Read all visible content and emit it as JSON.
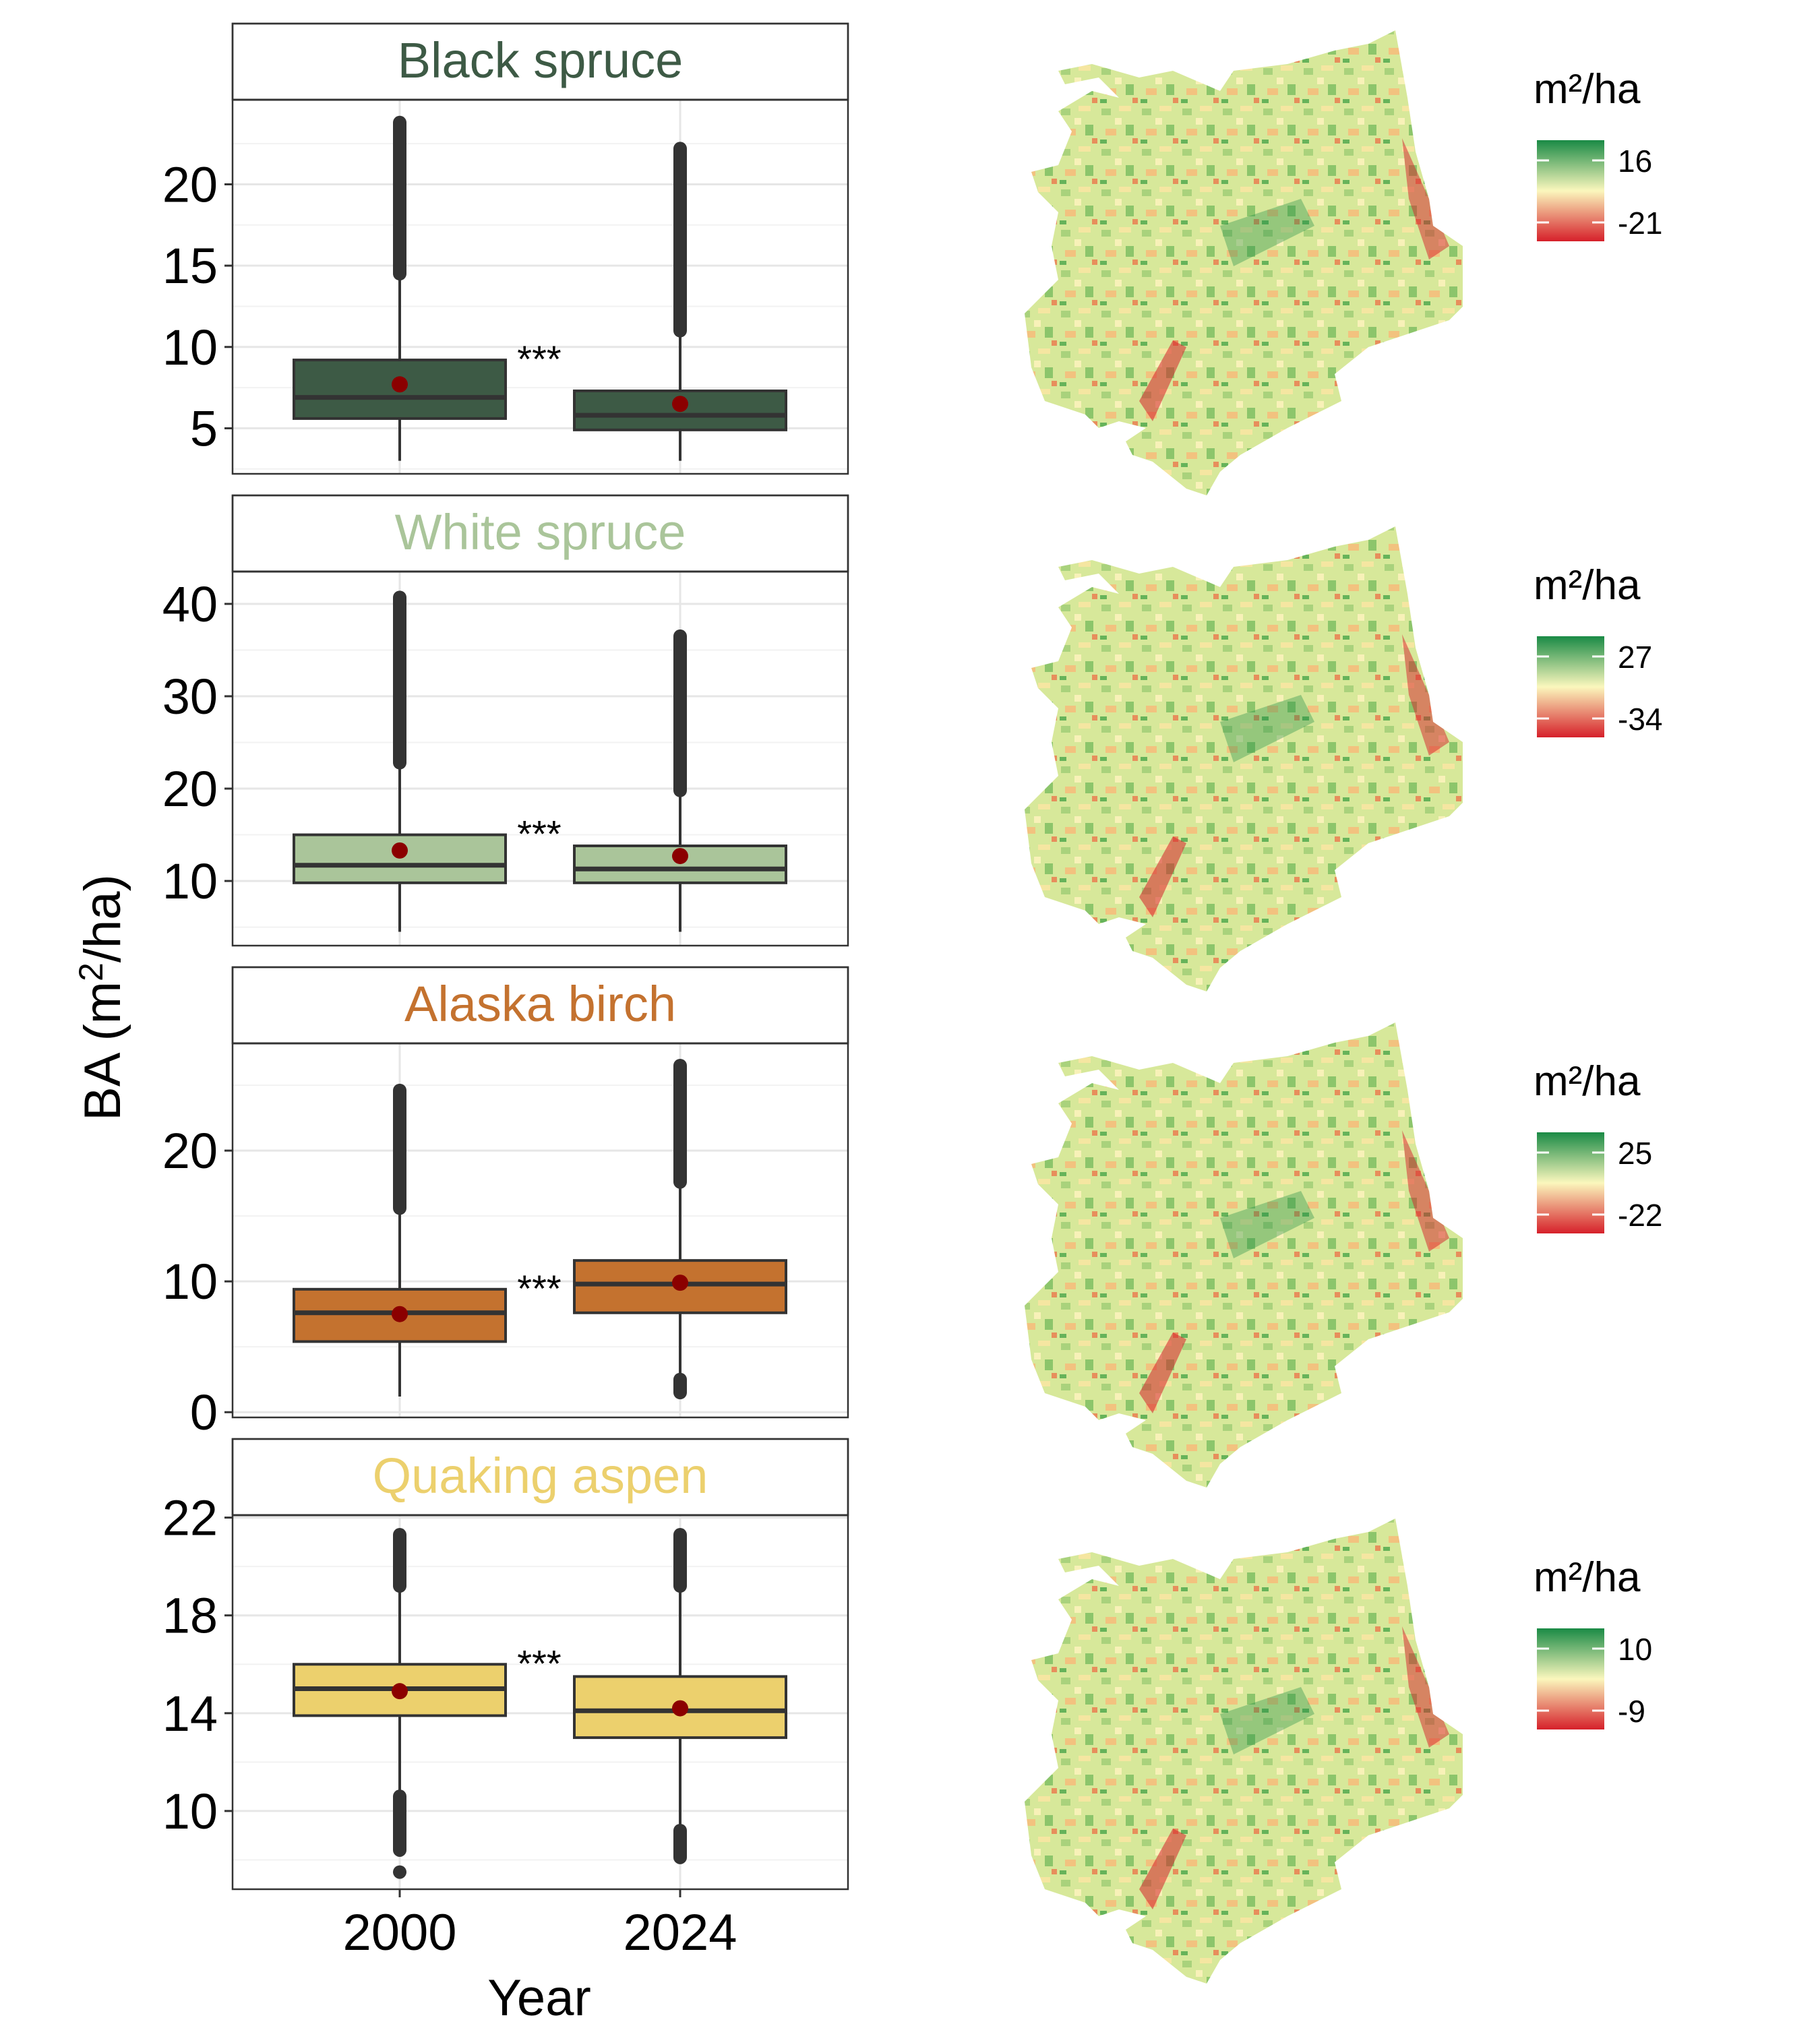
{
  "figure": {
    "ylabel": "BA (m²/ha)",
    "ylabel_main": "BA (m",
    "ylabel_sup": "2",
    "ylabel_tail": "/ha)",
    "xlabel": "Year"
  },
  "chart_data": [
    {
      "type": "box",
      "title": "Black spruce",
      "title_color": "#3d5a45",
      "fill": "#3d5a45",
      "categories": [
        "2000",
        "2024"
      ],
      "ylim": [
        2.2,
        25.2
      ],
      "yticks": [
        5,
        10,
        15,
        20
      ],
      "significance": "***",
      "boxes": [
        {
          "min": 3,
          "q1": 5.6,
          "median": 6.9,
          "q3": 9.2,
          "mean": 7.7,
          "whisker_high": 14.5,
          "outliers_low": null,
          "outliers_high": 23.8
        },
        {
          "min": 3,
          "q1": 4.9,
          "median": 5.8,
          "q3": 7.3,
          "mean": 6.5,
          "whisker_high": 11.0,
          "outliers_low": null,
          "outliers_high": 22.2
        }
      ]
    },
    {
      "type": "box",
      "title": "White spruce",
      "title_color": "#aac59a",
      "fill": "#aac59a",
      "categories": [
        "2000",
        "2024"
      ],
      "ylim": [
        3,
        43.5
      ],
      "yticks": [
        10,
        20,
        30,
        40
      ],
      "significance": "***",
      "boxes": [
        {
          "min": 4.5,
          "q1": 9.8,
          "median": 11.7,
          "q3": 15.0,
          "mean": 13.3,
          "whisker_high": 22.8,
          "outliers_low": null,
          "outliers_high": 40.7
        },
        {
          "min": 4.5,
          "q1": 9.8,
          "median": 11.3,
          "q3": 13.8,
          "mean": 12.7,
          "whisker_high": 19.8,
          "outliers_low": null,
          "outliers_high": 36.5
        }
      ]
    },
    {
      "type": "box",
      "title": "Alaska birch",
      "title_color": "#c4722f",
      "fill": "#c4722f",
      "categories": [
        "2000",
        "2024"
      ],
      "ylim": [
        -0.4,
        28.2
      ],
      "yticks": [
        0,
        10,
        20
      ],
      "significance": "***",
      "boxes": [
        {
          "min": 1.2,
          "q1": 5.4,
          "median": 7.6,
          "q3": 9.4,
          "mean": 7.5,
          "whisker_high": 15.6,
          "outliers_low": null,
          "outliers_high": 24.6
        },
        {
          "min": 2.5,
          "q1": 7.6,
          "median": 9.8,
          "q3": 11.6,
          "mean": 9.9,
          "whisker_high": 17.6,
          "outliers_low": 1.5,
          "outliers_high": 26.5
        }
      ]
    },
    {
      "type": "box",
      "title": "Quaking aspen",
      "title_color": "#ecd06d",
      "fill": "#ecd06d",
      "categories": [
        "2000",
        "2024"
      ],
      "ylim": [
        6.8,
        22.1
      ],
      "yticks": [
        10,
        14,
        18,
        22
      ],
      "significance": "***",
      "boxes": [
        {
          "min": 10.6,
          "q1": 13.9,
          "median": 15.0,
          "q3": 16.0,
          "mean": 14.9,
          "whisker_high": 19.2,
          "outliers_low": 8.4,
          "outliers_high": 21.3,
          "extreme_low": 7.5
        },
        {
          "min": 9.2,
          "q1": 13.0,
          "median": 14.1,
          "q3": 15.5,
          "mean": 14.2,
          "whisker_high": 19.2,
          "outliers_low": 8.1,
          "outliers_high": 21.3
        }
      ]
    }
  ],
  "maps": [
    {
      "legend_title": "m²/ha",
      "max_label": "16",
      "min_label": "-21"
    },
    {
      "legend_title": "m²/ha",
      "max_label": "27",
      "min_label": "-34"
    },
    {
      "legend_title": "m²/ha",
      "max_label": "25",
      "min_label": "-22"
    },
    {
      "legend_title": "m²/ha",
      "max_label": "10",
      "min_label": "-9"
    }
  ],
  "colors": {
    "mean_point": "#8b0000",
    "outline": "#333333",
    "grid_major": "#e6e6e6",
    "grid_minor": "#f2f2f2",
    "map_high": "#1a8a45",
    "map_mid": "#fbf7bd",
    "map_low": "#d6202a"
  }
}
